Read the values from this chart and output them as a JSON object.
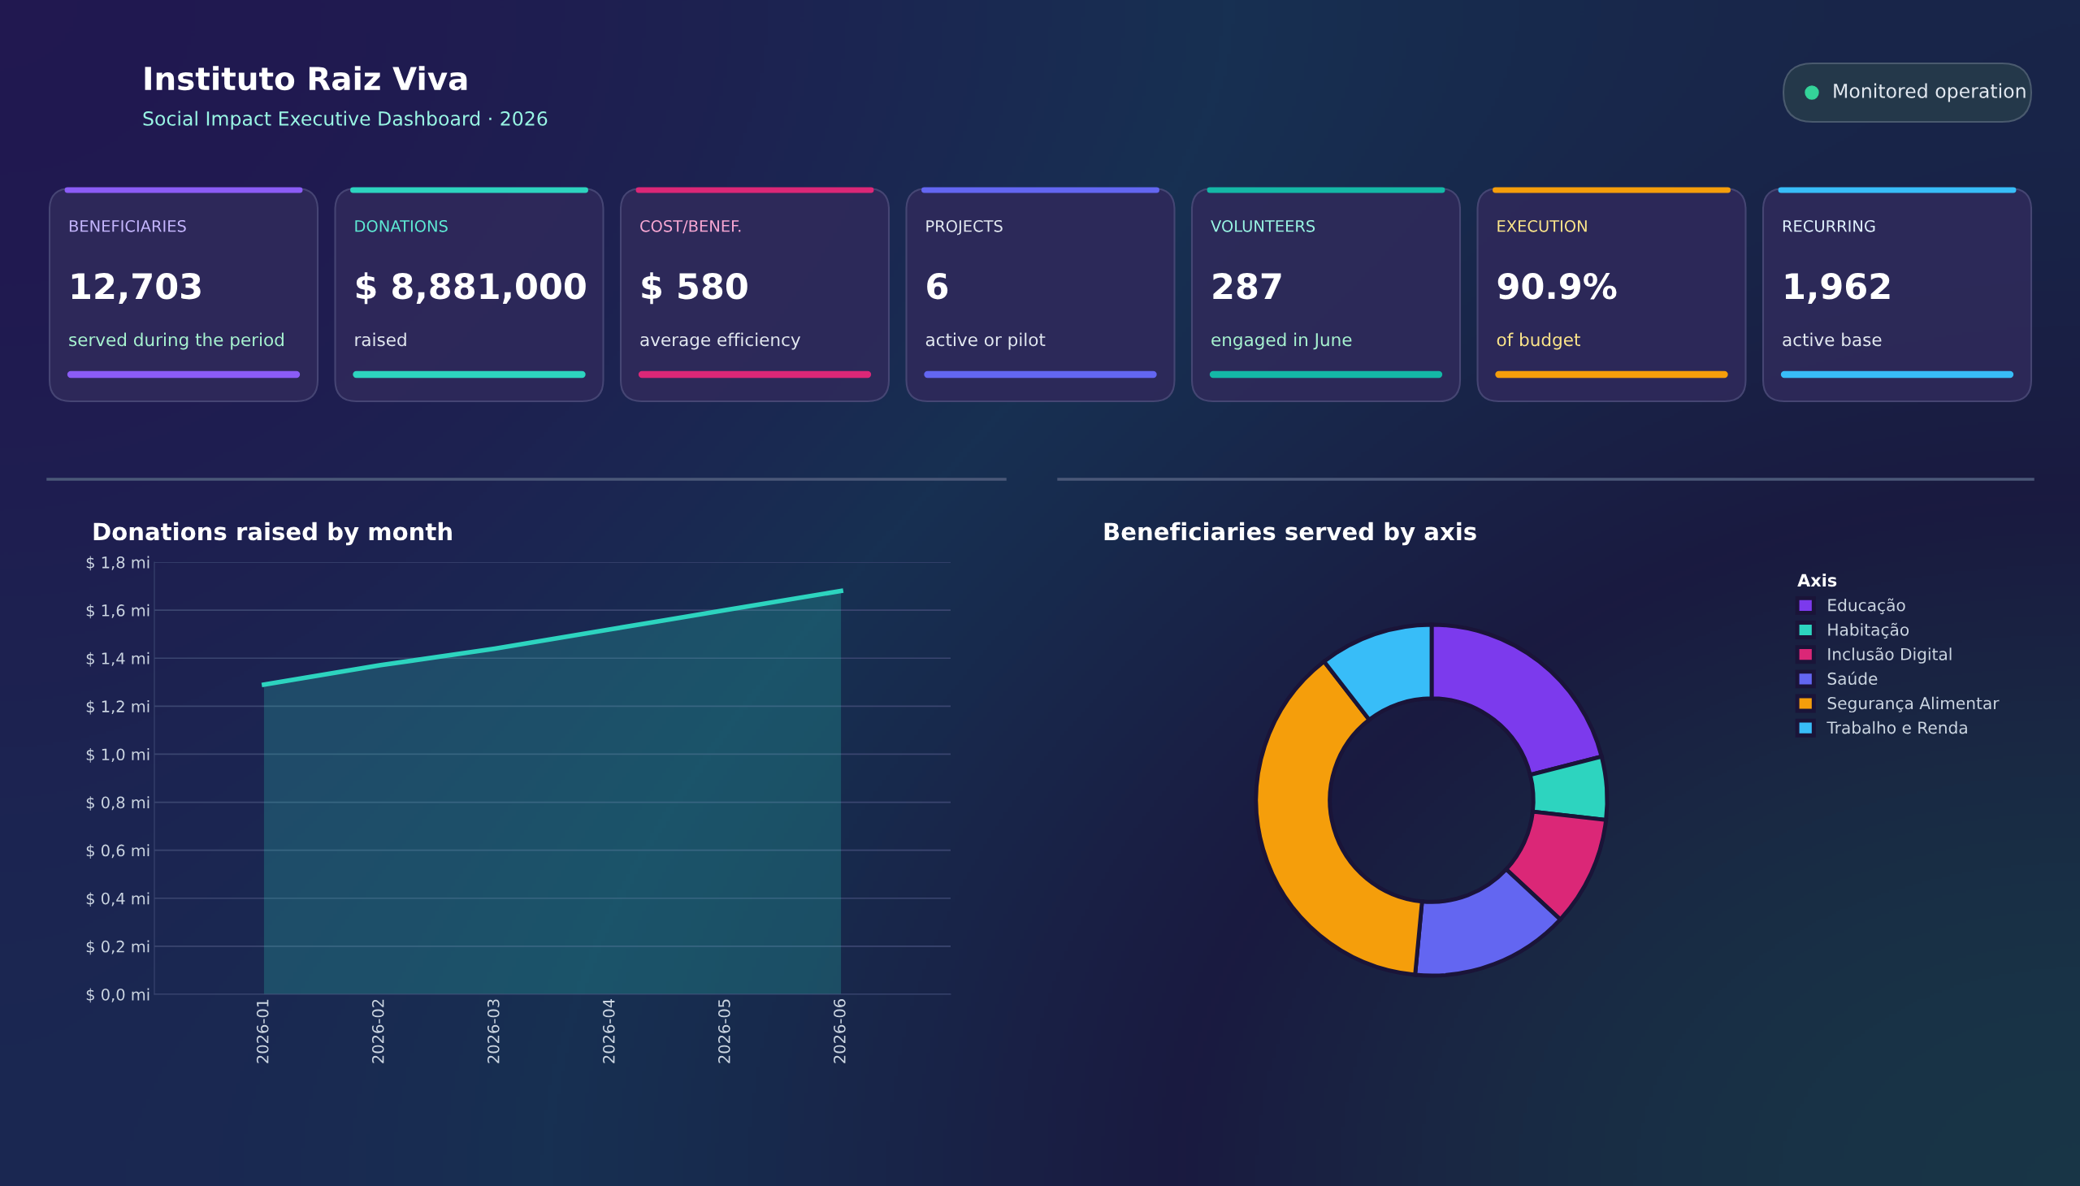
{
  "chart_data": [
    {
      "type": "other",
      "title": "Instituto Raiz Viva",
      "subtitle": "Social Impact Executive Dashboard · 2026",
      "annotations": [
        "Monitored operation"
      ]
    },
    {
      "type": "other",
      "title": "BENEFICIARIES",
      "annotations": [
        "12,703",
        "served during the period"
      ]
    },
    {
      "type": "other",
      "title": "DONATIONS",
      "annotations": [
        "$ 8,881,000",
        "raised"
      ]
    },
    {
      "type": "other",
      "title": "COST/BENEF.",
      "annotations": [
        "$ 580",
        "average efficiency"
      ]
    },
    {
      "type": "other",
      "title": "PROJECTS",
      "annotations": [
        "6",
        "active or pilot"
      ]
    },
    {
      "type": "other",
      "title": "VOLUNTEERS",
      "annotations": [
        "287",
        "engaged in June"
      ]
    },
    {
      "type": "other",
      "title": "EXECUTION",
      "annotations": [
        "90.9%",
        "of budget"
      ]
    },
    {
      "type": "other",
      "title": "RECURRING",
      "annotations": [
        "1,962",
        "active base"
      ]
    },
    {
      "type": "area",
      "title": "Donations raised by month",
      "categories": [
        "2026-01",
        "2026-02",
        "2026-03",
        "2026-04",
        "2026-05",
        "2026-06"
      ],
      "series": [
        {
          "color": "#2dd4bf",
          "values": [
            1.29,
            1.37,
            1.44,
            1.52,
            1.6,
            1.68
          ]
        }
      ],
      "ylim": [
        0,
        1.8
      ],
      "yticks": [
        {
          "value": 0,
          "label": "$ 0,0 mi"
        },
        {
          "value": 0.2,
          "label": "$ 0,2 mi"
        },
        {
          "value": 0.4,
          "label": "$ 0,4 mi"
        },
        {
          "value": 0.6,
          "label": "$ 0,6 mi"
        },
        {
          "value": 0.8,
          "label": "$ 0,8 mi"
        },
        {
          "value": 1.0,
          "label": "$ 1,0 mi"
        },
        {
          "value": 1.2,
          "label": "$ 1,2 mi"
        },
        {
          "value": 1.4,
          "label": "$ 1,4 mi"
        },
        {
          "value": 1.6,
          "label": "$ 1,6 mi"
        },
        {
          "value": 1.8,
          "label": "$ 1,8 mi"
        }
      ],
      "grid": "y",
      "marker": "none",
      "line_style": "solid",
      "legend": false
    },
    {
      "type": "donut",
      "title": "Beneficiaries served by axis",
      "legend_title": "Axis",
      "legend": "top right",
      "categories": [
        "Educação",
        "Habitação",
        "Inclusão Digital",
        "Saúde",
        "Segurança Alimentar",
        "Trabalho e Renda"
      ],
      "values": [
        21.0,
        5.8,
        10.1,
        14.6,
        38.0,
        10.5
      ],
      "colors": [
        "#7c3aed",
        "#2dd4bf",
        "#db2777",
        "#6366f1",
        "#f59e0b",
        "#38bdf8"
      ]
    }
  ]
}
